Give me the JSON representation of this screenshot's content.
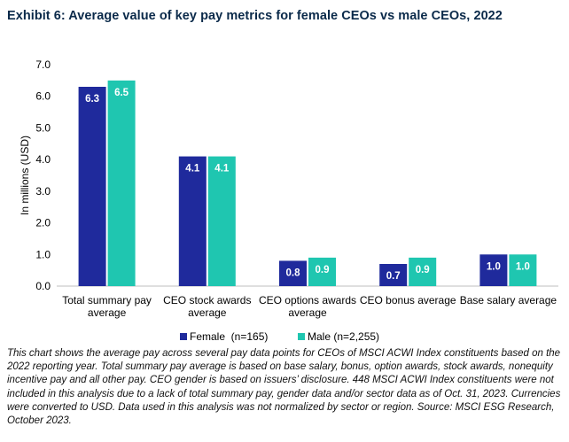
{
  "title": "Exhibit 6: Average value of key pay metrics for female CEOs vs male CEOs, 2022",
  "note": "This chart shows the average pay across several pay data points for CEOs of MSCI ACWI Index constituents based on the 2022 reporting year. Total summary pay average is based on base salary, bonus, option awards, stock awards, nonequity incentive pay and all other pay. CEO gender is based on issuers’ disclosure. 448 MSCI ACWI Index constituents were not included in this analysis due to a lack of total summary pay, gender data and/or sector data as of Oct. 31, 2023. Currencies were converted to USD. Data used in this analysis was not normalized by sector or region. Source: MSCI ESG Research, October 2023.",
  "colors": {
    "female": "#1f2a9c",
    "male": "#1fc6b0"
  },
  "chart_data": {
    "type": "bar",
    "ylabel": "In millions (USD)",
    "ylim": [
      0,
      7
    ],
    "yticks": [
      "0.0",
      "1.0",
      "2.0",
      "3.0",
      "4.0",
      "5.0",
      "6.0",
      "7.0"
    ],
    "categories": [
      [
        "Total summary pay",
        "average"
      ],
      [
        "CEO stock awards",
        "average"
      ],
      [
        "CEO options awards",
        "average"
      ],
      [
        "CEO bonus average"
      ],
      [
        "Base salary average"
      ]
    ],
    "series": [
      {
        "name": "Female  (n=165)",
        "values": [
          6.3,
          4.1,
          0.8,
          0.7,
          1.0
        ],
        "labels": [
          "6.3",
          "4.1",
          "0.8",
          "0.7",
          "1.0"
        ]
      },
      {
        "name": "Male (n=2,255)",
        "values": [
          6.5,
          4.1,
          0.9,
          0.9,
          1.0
        ],
        "labels": [
          "6.5",
          "4.1",
          "0.9",
          "0.9",
          "1.0"
        ]
      }
    ],
    "legend": "bottom",
    "grid": false
  }
}
